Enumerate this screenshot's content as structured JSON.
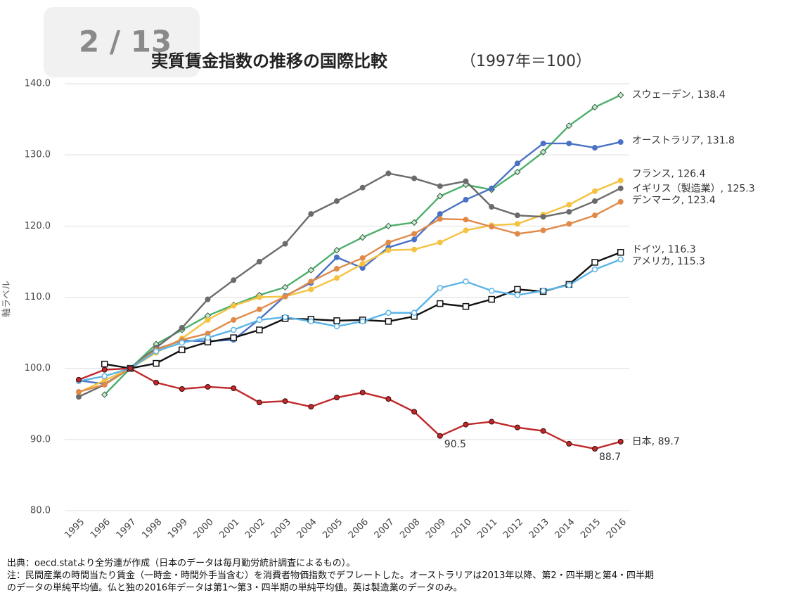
{
  "page_indicator": "2 / 13",
  "chart_data": {
    "type": "line",
    "title": "実質賃金指数の推移の国際比較",
    "subtitle": "（1997年＝100）",
    "y_label": "軸ラベル",
    "categories": [
      "1995",
      "1996",
      "1997",
      "1998",
      "1999",
      "2000",
      "2001",
      "2002",
      "2003",
      "2004",
      "2005",
      "2006",
      "2007",
      "2008",
      "2009",
      "2010",
      "2011",
      "2012",
      "2013",
      "2014",
      "2015",
      "2016"
    ],
    "ylim": [
      80,
      140
    ],
    "yticks": [
      {
        "value": 80,
        "label": "80.0"
      },
      {
        "value": 90,
        "label": "90.0"
      },
      {
        "value": 100,
        "label": "100.0"
      },
      {
        "value": 110,
        "label": "110.0"
      },
      {
        "value": 120,
        "label": "120.0"
      },
      {
        "value": 130,
        "label": "130.0"
      },
      {
        "value": 140,
        "label": "140.0"
      }
    ],
    "grid": true,
    "series": [
      {
        "label": "スウェーデン, 138.4",
        "color": "#4caf6a",
        "marker": "diamond",
        "values": [
          null,
          96.3,
          100,
          103.4,
          105.4,
          107.4,
          108.9,
          110.3,
          111.4,
          113.8,
          116.6,
          118.4,
          120.0,
          120.5,
          124.2,
          125.8,
          125.1,
          127.6,
          130.4,
          134.1,
          136.7,
          138.4
        ]
      },
      {
        "label": "オーストラリア, 131.8",
        "color": "#4a72c4",
        "marker": "circle",
        "values": [
          98.3,
          97.8,
          100,
          102.7,
          103.9,
          103.8,
          104.0,
          106.9,
          110.2,
          112.0,
          115.6,
          114.1,
          117.0,
          118.1,
          121.7,
          123.7,
          125.3,
          128.8,
          131.6,
          131.6,
          131.0,
          131.8
        ]
      },
      {
        "label": "フランス, 126.4",
        "color": "#f5c242",
        "marker": "circle",
        "values": [
          96.6,
          98.3,
          100,
          102.2,
          104.2,
          106.8,
          108.8,
          110.0,
          110.1,
          111.1,
          112.7,
          114.7,
          116.6,
          116.7,
          117.7,
          119.4,
          120.1,
          120.3,
          121.6,
          123.0,
          124.9,
          126.4
        ]
      },
      {
        "label": "イギリス（製造業）, 125.3",
        "color": "#6b6b6b",
        "marker": "circle",
        "values": [
          96.0,
          97.7,
          100,
          102.9,
          105.7,
          109.7,
          112.4,
          115.0,
          117.5,
          121.7,
          123.5,
          125.4,
          127.4,
          126.7,
          125.6,
          126.3,
          122.7,
          121.5,
          121.3,
          122.0,
          123.5,
          125.3
        ]
      },
      {
        "label": "デンマーク, 123.4",
        "color": "#e08a4a",
        "marker": "circle",
        "values": [
          96.7,
          97.7,
          100,
          102.6,
          104.0,
          104.9,
          106.8,
          108.3,
          110.1,
          112.2,
          114.0,
          115.5,
          117.7,
          118.9,
          121.0,
          120.9,
          119.9,
          118.9,
          119.4,
          120.3,
          121.5,
          123.4
        ]
      },
      {
        "label": "ドイツ, 116.3",
        "color": "#111111",
        "marker": "square",
        "values": [
          null,
          100.6,
          100,
          100.7,
          102.6,
          103.7,
          104.3,
          105.4,
          107.0,
          106.9,
          106.7,
          106.8,
          106.6,
          107.3,
          109.1,
          108.7,
          109.7,
          111.1,
          110.8,
          111.8,
          114.9,
          116.3
        ]
      },
      {
        "label": "アメリカ, 115.3",
        "color": "#5ab4e8",
        "marker": "hollow-circle",
        "values": [
          98.2,
          98.9,
          100,
          102.4,
          103.6,
          104.3,
          105.4,
          106.8,
          107.2,
          106.6,
          105.9,
          106.6,
          107.8,
          107.8,
          111.3,
          112.2,
          110.9,
          110.3,
          110.9,
          111.7,
          113.9,
          115.3
        ]
      },
      {
        "label": "日本, 89.7",
        "color": "#c0282a",
        "marker": "circle",
        "values": [
          98.4,
          99.8,
          100,
          98.0,
          97.1,
          97.4,
          97.2,
          95.2,
          95.4,
          94.6,
          95.9,
          96.6,
          95.7,
          93.9,
          90.5,
          92.1,
          92.5,
          91.7,
          91.2,
          89.4,
          88.7,
          89.7
        ],
        "value_labels": [
          null,
          null,
          null,
          null,
          null,
          null,
          null,
          null,
          null,
          null,
          null,
          null,
          null,
          null,
          "90.5",
          null,
          null,
          null,
          null,
          null,
          "88.7",
          null
        ]
      }
    ],
    "footnotes": [
      "出典：oecd.statより全労連が作成（日本のデータは毎月勤労統計調査によるもの）。",
      "注：民間産業の時間当たり賃金（一時金・時間外手当含む）を消費者物価指数でデフレートした。オーストラリアは2013年以降、第2・四半期と第4・四半期",
      "のデータの単純平均値。仏と独の2016年データは第1～第3・四半期の単純平均値。英は製造業のデータのみ。"
    ]
  }
}
